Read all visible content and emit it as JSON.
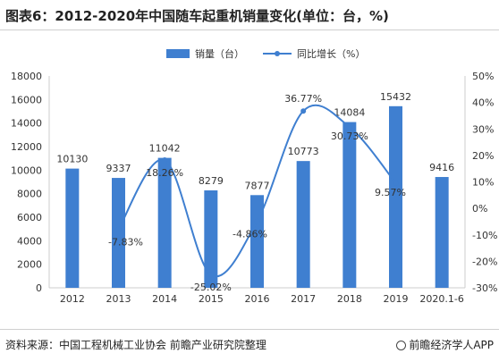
{
  "title": "图表6：2012-2020年中国随车起重机销量变化(单位：台，%)",
  "footer": {
    "source": "资料来源：中国工程机械工业协会 前瞻产业研究院整理",
    "brand": "前瞻经济学人APP"
  },
  "colors": {
    "bar": "#3f7fd0",
    "line": "#3f7fd0",
    "axis": "#cccccc",
    "text": "#333333"
  },
  "chart_data": {
    "type": "bar",
    "categories": [
      "2012",
      "2013",
      "2014",
      "2015",
      "2016",
      "2017",
      "2018",
      "2019",
      "2020.1-6"
    ],
    "series": [
      {
        "name": "销量（台）",
        "type": "bar",
        "axis": "left",
        "values": [
          10130,
          9337,
          11042,
          8279,
          7877,
          10773,
          14084,
          15432,
          9416
        ],
        "labels": [
          "10130",
          "9337",
          "11042",
          "8279",
          "7877",
          "10773",
          "14084",
          "15432",
          "9416"
        ]
      },
      {
        "name": "同比增长（%）",
        "type": "line",
        "axis": "right",
        "values": [
          null,
          -7.83,
          18.26,
          -25.02,
          -4.86,
          36.77,
          30.73,
          9.57,
          null
        ],
        "labels": [
          "",
          "-7.83%",
          "18.26%",
          "-25.02%",
          "-4.86%",
          "36.77%",
          "30.73%",
          "9.57%",
          ""
        ]
      }
    ],
    "y_left": {
      "min": 0,
      "max": 18000,
      "ticks": [
        "0",
        "2000",
        "4000",
        "6000",
        "8000",
        "10000",
        "12000",
        "14000",
        "16000",
        "18000"
      ]
    },
    "y_right": {
      "min": -30,
      "max": 50,
      "ticks": [
        "-30%",
        "-20%",
        "-10%",
        "0%",
        "10%",
        "20%",
        "30%",
        "40%",
        "50%"
      ]
    },
    "legend_position": "top-center",
    "grid": false
  }
}
